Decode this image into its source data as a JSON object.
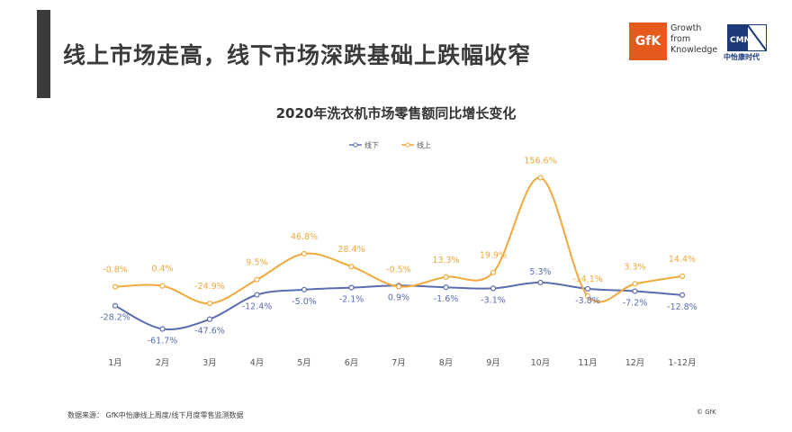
{
  "header": {
    "headline": "线上市场走高，线下市场深跌基础上跌幅收窄"
  },
  "logos": {
    "gfk_mark": "GfK",
    "gfk_tagline": [
      "Growth",
      "from",
      "Knowledge"
    ],
    "cmm_mark": "CMM",
    "cmm_name": "中怡康时代"
  },
  "footer": {
    "source": "数据来源：  GfK中怡康线上周度/线下月度零售监测数据",
    "copyright": "© GfK"
  },
  "colors": {
    "offline": "#5b6db0",
    "online": "#f0a93a",
    "accent_bar": "#3b3b3b",
    "gfk_orange": "#e55a1c"
  },
  "chart_data": {
    "type": "line",
    "title": "2020年洗衣机市场零售额同比增长变化",
    "categories": [
      "1月",
      "2月",
      "3月",
      "4月",
      "5月",
      "6月",
      "7月",
      "8月",
      "9月",
      "10月",
      "11月",
      "12月",
      "1-12月"
    ],
    "series": [
      {
        "name": "线下",
        "values": [
          -28.2,
          -61.7,
          -47.6,
          -12.4,
          -5.0,
          -2.1,
          0.9,
          -1.6,
          -3.1,
          5.3,
          -3.8,
          -7.2,
          -12.8
        ],
        "labels": [
          "-28.2%",
          "-61.7%",
          "-47.6%",
          "-12.4%",
          "-5.0%",
          "-2.1%",
          "0.9%",
          "-1.6%",
          "-3.1%",
          "5.3%",
          "-3.8%",
          "-7.2%",
          "-12.8%"
        ]
      },
      {
        "name": "线上",
        "values": [
          -0.8,
          0.4,
          -24.9,
          9.5,
          46.8,
          28.4,
          -0.5,
          13.3,
          19.9,
          156.6,
          -14.1,
          3.3,
          14.4
        ],
        "labels": [
          "-0.8%",
          "0.4%",
          "-24.9%",
          "9.5%",
          "46.8%",
          "28.4%",
          "-0.5%",
          "13.3%",
          "19.9%",
          "156.6%",
          "-14.1%",
          "3.3%",
          "14.4%"
        ]
      }
    ],
    "ylim": [
      -70,
      160
    ],
    "smooth": true,
    "grid": false,
    "legend_position": "top-center"
  }
}
